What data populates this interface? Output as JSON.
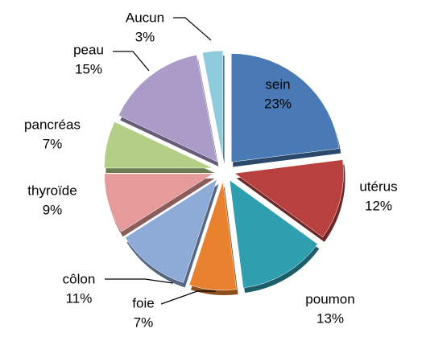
{
  "chart_data": {
    "type": "pie",
    "categories": [
      "sein",
      "utérus",
      "poumon",
      "foie",
      "côlon",
      "thyroïde",
      "pancréas",
      "peau",
      "Aucun"
    ],
    "values": [
      23,
      12,
      13,
      7,
      11,
      9,
      7,
      15,
      3
    ],
    "value_labels": [
      "23%",
      "12%",
      "13%",
      "7%",
      "11%",
      "9%",
      "7%",
      "15%",
      "3%"
    ],
    "colors": [
      "#4a7ab5",
      "#b8413f",
      "#2f9fb0",
      "#e8822f",
      "#8eaad6",
      "#e69b9a",
      "#b3cf85",
      "#ab9bc8",
      "#8ecbdc"
    ]
  }
}
